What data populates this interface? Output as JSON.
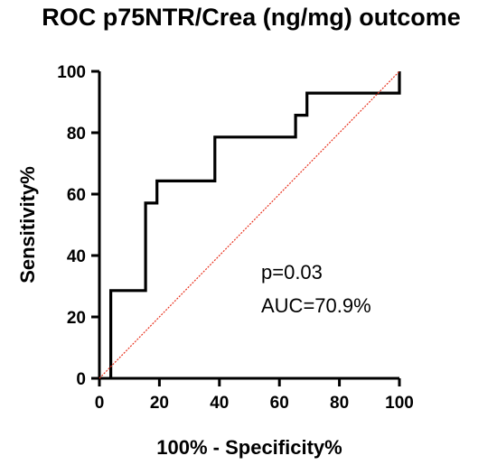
{
  "chart_data": {
    "type": "line",
    "title": "ROC p75NTR/Crea (ng/mg) outcome",
    "xlabel": "100% - Specificity%",
    "ylabel": "Sensitivity%",
    "xlim": [
      0,
      100
    ],
    "ylim": [
      0,
      100
    ],
    "x_ticks": [
      0,
      20,
      40,
      60,
      80,
      100
    ],
    "y_ticks": [
      0,
      20,
      40,
      60,
      80,
      100
    ],
    "grid": false,
    "series": [
      {
        "type": "step",
        "color": "#000000",
        "points": [
          [
            3.8,
            0
          ],
          [
            3.8,
            28.6
          ],
          [
            15.4,
            28.6
          ],
          [
            15.4,
            57.1
          ],
          [
            19.2,
            57.1
          ],
          [
            19.2,
            64.3
          ],
          [
            38.5,
            64.3
          ],
          [
            38.5,
            78.6
          ],
          [
            65.4,
            78.6
          ],
          [
            65.4,
            85.7
          ],
          [
            69.2,
            85.7
          ],
          [
            69.2,
            92.9
          ],
          [
            100,
            92.9
          ],
          [
            100,
            100
          ]
        ]
      },
      {
        "type": "reference",
        "color": "#e8321e",
        "points": [
          [
            0,
            0
          ],
          [
            100,
            100
          ]
        ]
      }
    ],
    "annotations": [
      "p=0.03",
      "AUC=70.9%"
    ]
  }
}
